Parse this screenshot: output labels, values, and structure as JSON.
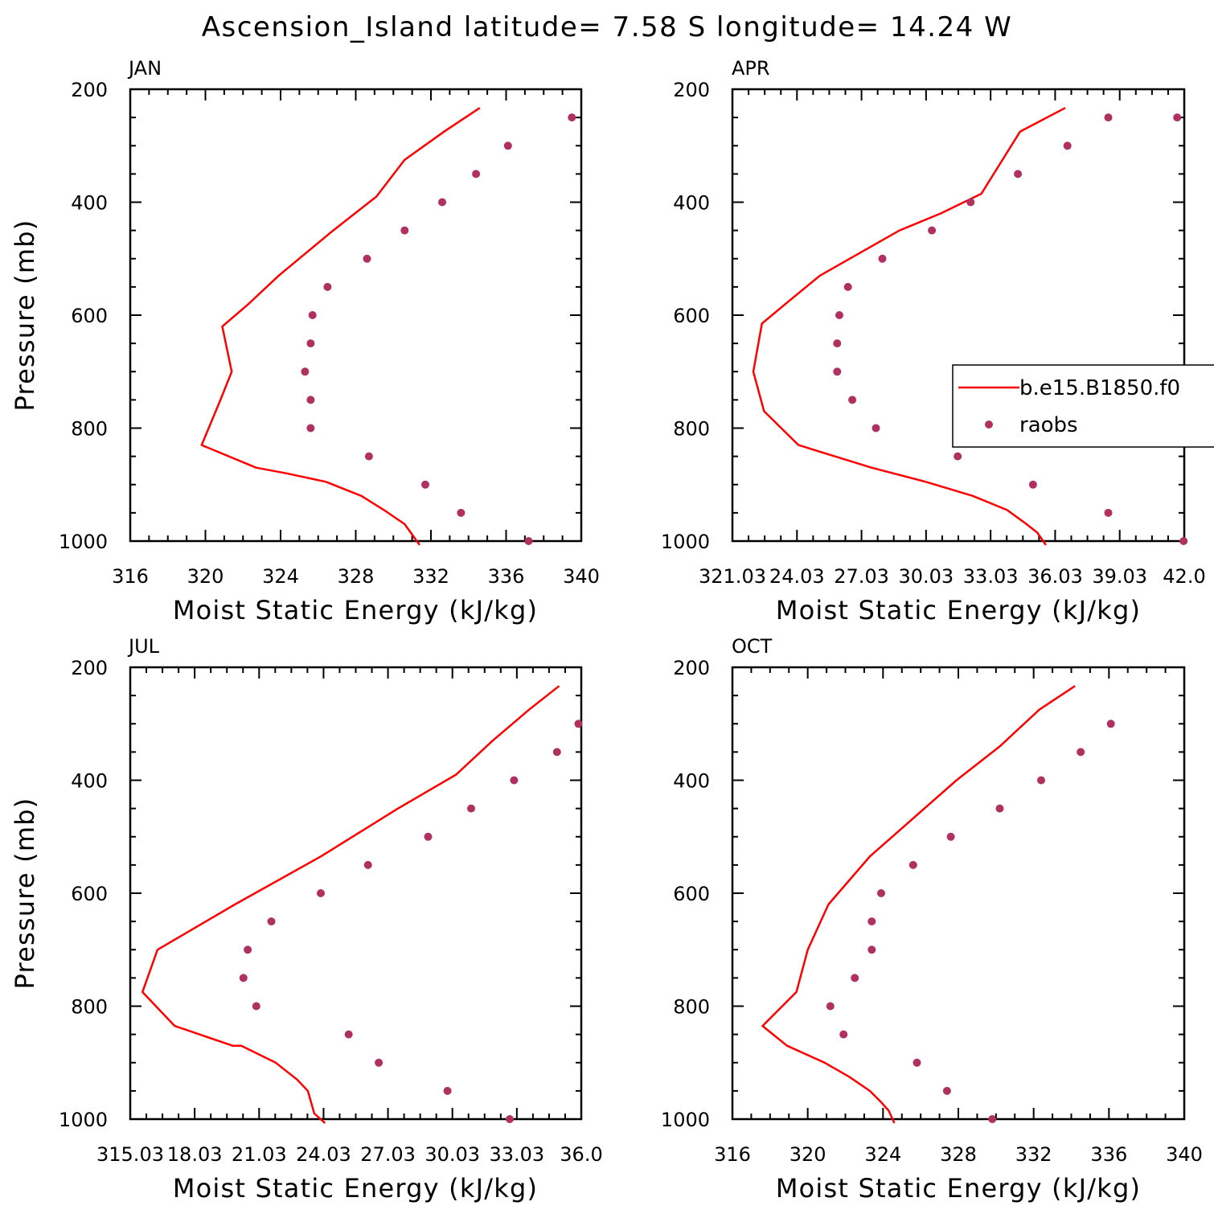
{
  "title": "Ascension_Island  latitude= 7.58 S longitude= 14.24 W",
  "colors": {
    "model_line": "#ff0000",
    "obs_marker": "#b03060",
    "axes": "#000000",
    "background": "#ffffff"
  },
  "legend": {
    "placement": "right-middle of APR panel",
    "model_label": "b.e15.B1850.f0",
    "obs_label": "raobs"
  },
  "chart_data": [
    {
      "type": "line",
      "panel": "JAN",
      "xlabel": "Moist Static Energy (kJ/kg)",
      "ylabel": "Pressure (mb)",
      "xlim": [
        316,
        340
      ],
      "ylim": [
        1000,
        200
      ],
      "y_reversed": true,
      "xticks": [
        "316",
        "320",
        "324",
        "328",
        "332",
        "336",
        "340"
      ],
      "yticks": [
        "200",
        "400",
        "600",
        "800",
        "1000"
      ],
      "series": [
        {
          "name": "b.e15.B1850.f0",
          "style": "line",
          "x": [
            331.4,
            330.6,
            329.5,
            328.3,
            326.4,
            324.3,
            322.7,
            319.8,
            320.8,
            321.4,
            320.9,
            322.3,
            323.9,
            326.8,
            329.1,
            330.6,
            332.7,
            334.6
          ],
          "y": [
            1007,
            970,
            945,
            920,
            895,
            880,
            870,
            830,
            750,
            700,
            620,
            580,
            530,
            450,
            390,
            325,
            275,
            233
          ]
        },
        {
          "name": "raobs",
          "style": "marker",
          "x": [
            337.2,
            333.6,
            331.7,
            328.7,
            325.6,
            325.6,
            325.3,
            325.6,
            325.7,
            326.5,
            328.6,
            330.6,
            332.6,
            334.4,
            336.1,
            339.5
          ],
          "y": [
            1000,
            950,
            900,
            850,
            800,
            750,
            700,
            650,
            600,
            550,
            500,
            450,
            400,
            350,
            300,
            250
          ]
        }
      ]
    },
    {
      "type": "line",
      "panel": "APR",
      "xlabel": "Moist Static Energy (kJ/kg)",
      "ylabel": "",
      "xlim": [
        321.03,
        342.03
      ],
      "ylim": [
        1000,
        200
      ],
      "y_reversed": true,
      "xticks": [
        "321.03",
        "24.03",
        "27.03",
        "30.03",
        "33.03",
        "36.03",
        "39.03",
        "42.0"
      ],
      "yticks": [
        "200",
        "400",
        "600",
        "800",
        "1000"
      ],
      "series": [
        {
          "name": "b.e15.B1850.f0",
          "style": "line",
          "x": [
            335.6,
            335.2,
            334.7,
            333.8,
            332.2,
            330.0,
            327.5,
            324.1,
            322.5,
            322.0,
            322.4,
            323.5,
            325.1,
            328.8,
            330.7,
            332.6,
            334.4,
            336.5
          ],
          "y": [
            1007,
            985,
            970,
            945,
            920,
            895,
            870,
            830,
            770,
            700,
            615,
            580,
            530,
            450,
            420,
            385,
            275,
            233
          ]
        },
        {
          "name": "raobs",
          "style": "marker",
          "x": [
            342.0,
            338.5,
            335.0,
            331.5,
            327.7,
            326.6,
            325.9,
            325.9,
            326.0,
            326.4,
            328.0,
            330.3,
            332.1,
            334.3,
            336.6,
            338.5,
            341.7
          ],
          "y": [
            1000,
            950,
            900,
            850,
            800,
            750,
            700,
            650,
            600,
            550,
            500,
            450,
            400,
            350,
            300,
            250,
            250
          ]
        }
      ]
    },
    {
      "type": "line",
      "panel": "JUL",
      "xlabel": "Moist Static Energy (kJ/kg)",
      "ylabel": "Pressure (mb)",
      "xlim": [
        315.03,
        336.03
      ],
      "ylim": [
        1000,
        200
      ],
      "y_reversed": true,
      "xticks": [
        "315.03",
        "18.03",
        "21.03",
        "24.03",
        "27.03",
        "30.03",
        "33.03",
        "36.0"
      ],
      "yticks": [
        "200",
        "400",
        "600",
        "800",
        "1000"
      ],
      "series": [
        {
          "name": "b.e15.B1850.f0",
          "style": "line",
          "x": [
            324.1,
            323.6,
            323.3,
            322.8,
            321.8,
            320.2,
            319.8,
            317.1,
            315.6,
            316.3,
            319.9,
            323.9,
            327.5,
            330.2,
            331.9,
            333.6,
            335.0
          ],
          "y": [
            1007,
            990,
            950,
            930,
            900,
            870,
            870,
            835,
            775,
            700,
            620,
            535,
            450,
            390,
            330,
            275,
            233
          ]
        },
        {
          "name": "raobs",
          "style": "marker",
          "x": [
            332.7,
            329.8,
            326.6,
            325.2,
            320.9,
            320.3,
            320.5,
            321.6,
            323.9,
            326.1,
            328.9,
            330.9,
            332.9,
            334.9,
            335.9
          ],
          "y": [
            1000,
            950,
            900,
            850,
            800,
            750,
            700,
            650,
            600,
            550,
            500,
            450,
            400,
            350,
            300
          ]
        }
      ]
    },
    {
      "type": "line",
      "panel": "OCT",
      "xlabel": "Moist Static Energy (kJ/kg)",
      "ylabel": "",
      "xlim": [
        316,
        340
      ],
      "ylim": [
        1000,
        200
      ],
      "y_reversed": true,
      "xticks": [
        "316",
        "320",
        "324",
        "328",
        "332",
        "336",
        "340"
      ],
      "yticks": [
        "200",
        "400",
        "600",
        "800",
        "1000"
      ],
      "series": [
        {
          "name": "b.e15.B1850.f0",
          "style": "line",
          "x": [
            324.6,
            324.3,
            323.9,
            323.3,
            322.2,
            320.9,
            318.9,
            317.6,
            319.4,
            320.0,
            321.1,
            323.3,
            326.2,
            327.9,
            330.2,
            332.3,
            334.2
          ],
          "y": [
            1007,
            985,
            970,
            950,
            925,
            900,
            870,
            835,
            775,
            700,
            620,
            535,
            450,
            400,
            340,
            275,
            233
          ]
        },
        {
          "name": "raobs",
          "style": "marker",
          "x": [
            329.8,
            327.4,
            325.8,
            321.9,
            321.2,
            322.5,
            323.4,
            323.4,
            323.9,
            325.6,
            327.6,
            330.2,
            332.4,
            334.5,
            336.1
          ],
          "y": [
            1000,
            950,
            900,
            850,
            800,
            750,
            700,
            650,
            600,
            550,
            500,
            450,
            400,
            350,
            300
          ]
        }
      ]
    }
  ]
}
